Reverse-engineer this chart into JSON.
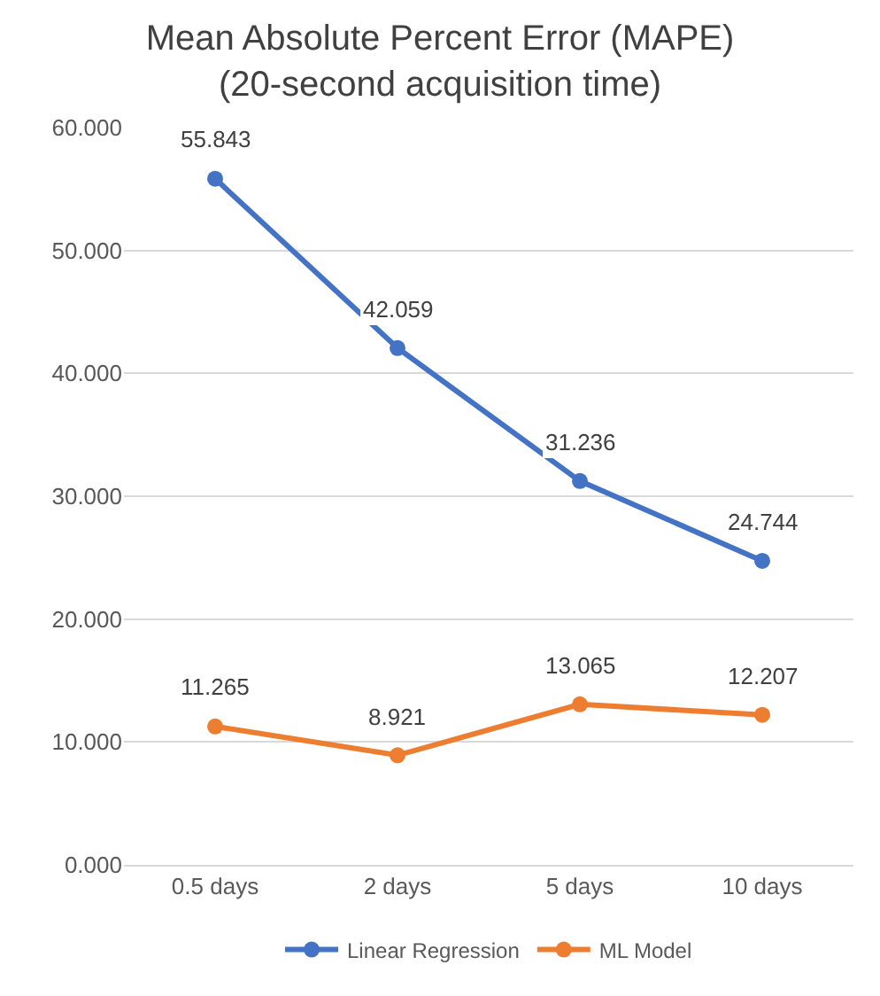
{
  "chart_data": {
    "type": "line",
    "title": "Mean Absolute Percent Error (MAPE)\n(20-second acquisition time)",
    "categories": [
      "0.5 days",
      "2 days",
      "5 days",
      "10 days"
    ],
    "series": [
      {
        "name": "Linear Regression",
        "color": "#4472c4",
        "values": [
          55.843,
          42.059,
          31.236,
          24.744
        ]
      },
      {
        "name": "ML Model",
        "color": "#ed7d31",
        "values": [
          11.265,
          8.921,
          13.065,
          12.207
        ]
      }
    ],
    "ylim": [
      0,
      60
    ],
    "yticks": [
      {
        "value": 0,
        "label": "0.000"
      },
      {
        "value": 10,
        "label": "10.000"
      },
      {
        "value": 20,
        "label": "20.000"
      },
      {
        "value": 30,
        "label": "30.000"
      },
      {
        "value": 40,
        "label": "40.000"
      },
      {
        "value": 50,
        "label": "50.000"
      },
      {
        "value": 60,
        "label": "60.000"
      }
    ],
    "grid": "y",
    "legend": "bottom",
    "marker": "circle",
    "line_style": "solid",
    "data_labels": true
  }
}
